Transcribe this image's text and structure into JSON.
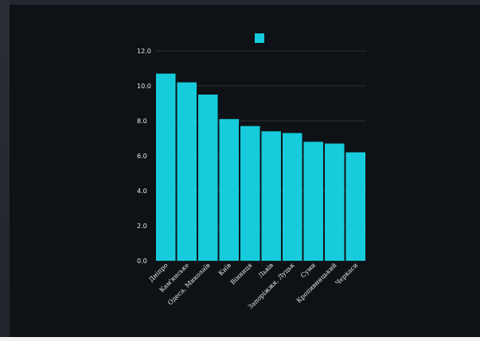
{
  "chart_data": {
    "type": "bar",
    "categories": [
      "Дніпро",
      "Кам'янське",
      "Одеса, Миколаїв",
      "Київ",
      "Вінниця",
      "Львів",
      "Запоріжжя, Луцьк",
      "Суми",
      "Кропивницький",
      "Черкаси"
    ],
    "values": [
      10.7,
      10.2,
      9.5,
      8.1,
      7.7,
      7.4,
      7.3,
      6.8,
      6.7,
      6.2
    ],
    "title": "",
    "xlabel": "",
    "ylabel": "",
    "ylim": [
      0,
      12
    ],
    "yticks": [
      "0.0",
      "2.0",
      "4.0",
      "6.0",
      "8.0",
      "10.0",
      "12.0"
    ],
    "grid": true,
    "legend": "top-center",
    "colors": {
      "bar": "#16ccdc",
      "background": "#0e1217",
      "grid": "#2b3038",
      "text": "#e8e8e8"
    }
  }
}
